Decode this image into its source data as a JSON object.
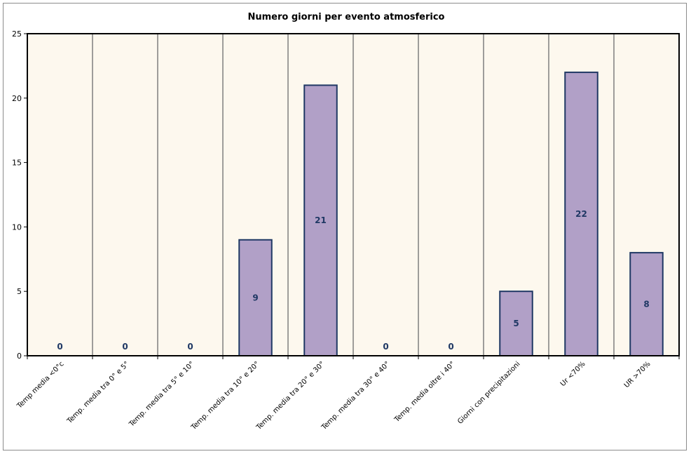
{
  "chart_data": {
    "type": "bar",
    "title": "Numero giorni per evento atmosferico",
    "xlabel": "",
    "ylabel": "",
    "categories": [
      "Temp media <0°c",
      "Temp. media tra 0° e 5°",
      "Temp. media tra 5° e 10°",
      "Temp. media tra 10° e 20°",
      "Temp. media tra 20° e 30°",
      "Temp. media tra 30° e 40°",
      "Temp. media oltre i 40°",
      "Giorni con precipitazioni",
      "Ur <70%",
      "UR >70%"
    ],
    "values": [
      0,
      0,
      0,
      9,
      21,
      0,
      0,
      5,
      22,
      8
    ],
    "data_labels": [
      "0",
      "0",
      "0",
      "9",
      "21",
      "0",
      "0",
      "5",
      "22",
      "8"
    ],
    "ylim": [
      0,
      25
    ],
    "yticks": [
      0,
      5,
      10,
      15,
      20,
      25
    ],
    "ytick_labels": [
      "0",
      "5",
      "10",
      "15",
      "20",
      "25"
    ],
    "grid": "vertical lines between categories",
    "legend": "none",
    "colors": {
      "bar_fill": "#b1a0c7",
      "bar_stroke": "#1f3864",
      "plot_background": "#fdf8ee",
      "gridline": "#7f7f7f",
      "data_label": "#1f3864"
    }
  }
}
